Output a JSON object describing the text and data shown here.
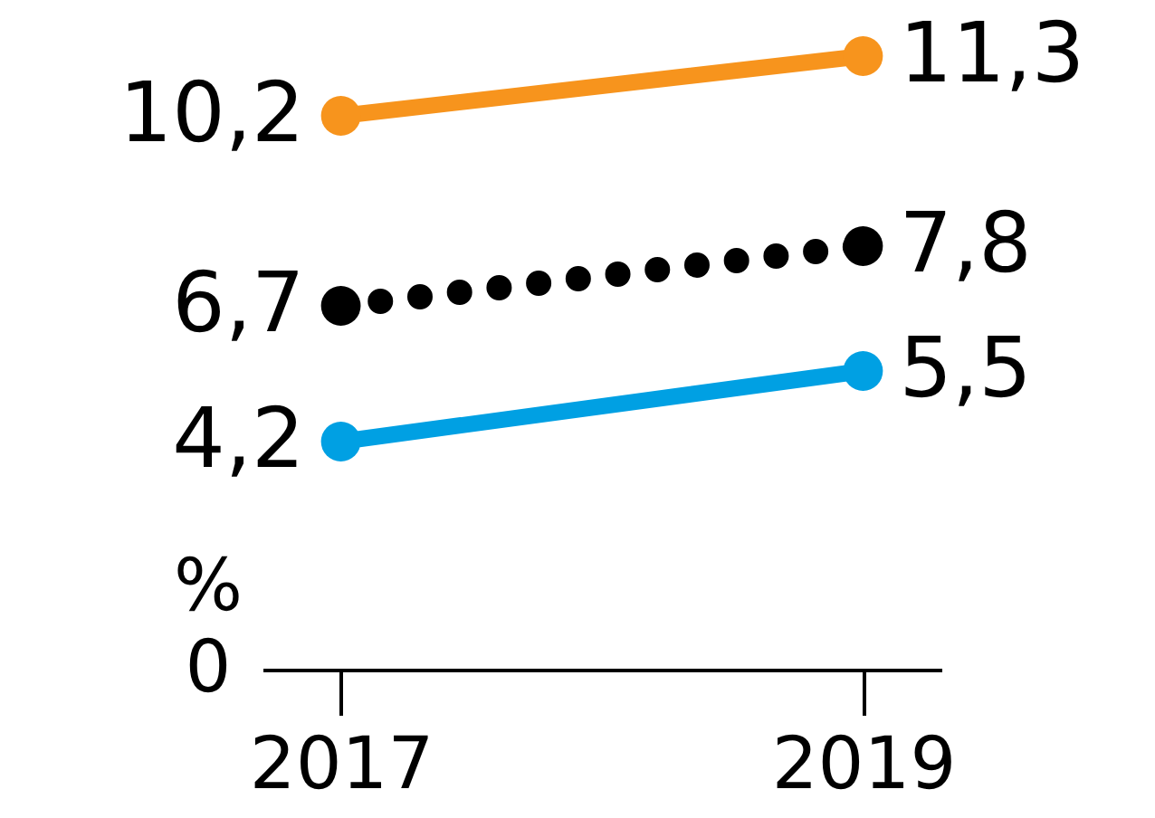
{
  "chart_data": {
    "type": "line",
    "categories": [
      "2017",
      "2019"
    ],
    "grid": false,
    "marker": "circle",
    "annotations": [
      "0",
      "%"
    ],
    "series": [
      {
        "color": "#f7941d",
        "values": [
          10.2,
          11.3
        ],
        "value_labels": [
          "10,2",
          "11,3"
        ],
        "line_style": "solid"
      },
      {
        "color": "#000000",
        "values": [
          6.7,
          7.8
        ],
        "value_labels": [
          "6,7",
          "7,8"
        ],
        "line_style": "dotted"
      },
      {
        "color": "#00a0e3",
        "values": [
          4.2,
          5.5
        ],
        "value_labels": [
          "4,2",
          "5,5"
        ],
        "line_style": "solid"
      }
    ]
  }
}
